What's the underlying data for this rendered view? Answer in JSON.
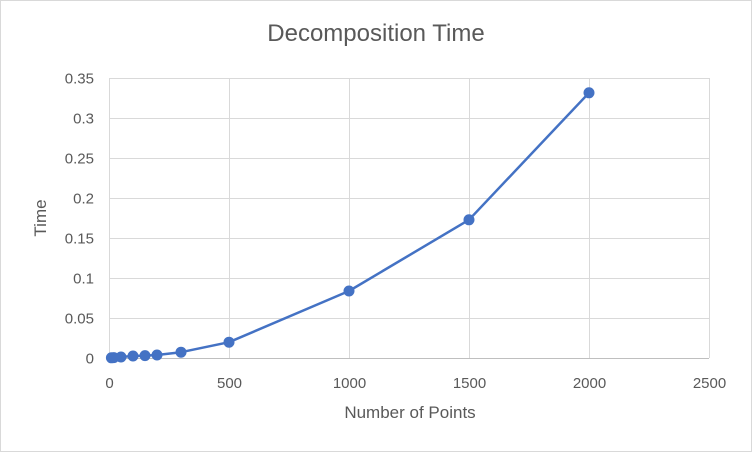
{
  "chart_data": {
    "type": "line",
    "title": "Decomposition Time",
    "xlabel": "Number of Points",
    "ylabel": "Time",
    "xlim": [
      0,
      2500
    ],
    "ylim": [
      0,
      0.35
    ],
    "x_ticks": [
      0,
      500,
      1000,
      1500,
      2000,
      2500
    ],
    "y_ticks": [
      0,
      0.05,
      0.1,
      0.15,
      0.2,
      0.25,
      0.3,
      0.35
    ],
    "x_tick_labels": [
      "0",
      "500",
      "1000",
      "1500",
      "2000",
      "2500"
    ],
    "y_tick_labels": [
      "0",
      "0.05",
      "0.1",
      "0.15",
      "0.2",
      "0.25",
      "0.3",
      "0.35"
    ],
    "grid": true,
    "legend": "none",
    "series": [
      {
        "color": "#4472c4",
        "x": [
          10,
          20,
          50,
          100,
          150,
          200,
          300,
          500,
          1000,
          1500,
          2000
        ],
        "y": [
          0.0002,
          0.0005,
          0.0013,
          0.0025,
          0.003,
          0.0038,
          0.0072,
          0.0197,
          0.0837,
          0.1727,
          0.3315
        ]
      }
    ]
  }
}
